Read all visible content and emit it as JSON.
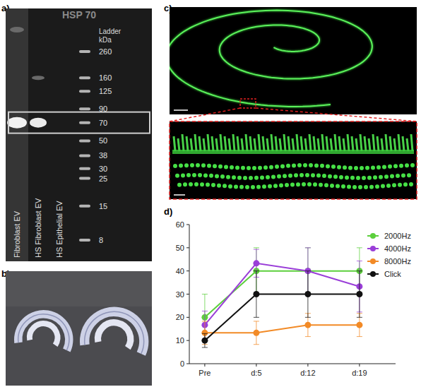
{
  "figure": {
    "panels": [
      "a)",
      "b)",
      "c)",
      "d)"
    ],
    "blot": {
      "title": "HSP 70",
      "ladder_title": "Ladder",
      "ladder_unit": "kDa",
      "ladder": [
        260,
        160,
        125,
        90,
        70,
        50,
        38,
        30,
        25,
        15,
        8
      ],
      "lanes": [
        "Fibroblast EV",
        "HS Fibroblast EV",
        "HS Epithelial EV"
      ]
    }
  },
  "chart_data": {
    "type": "line",
    "categories": [
      "Pre",
      "d:5",
      "d:12",
      "d:19"
    ],
    "ylim": [
      0,
      60
    ],
    "yticks": [
      0,
      10,
      20,
      30,
      40,
      50,
      60
    ],
    "legend": "upper right",
    "marker": "circle",
    "series": [
      {
        "name": "2000Hz",
        "color": "#5ccf3c",
        "values": [
          20,
          40,
          40,
          40
        ],
        "errors": [
          10,
          10,
          10,
          10
        ]
      },
      {
        "name": "4000Hz",
        "color": "#9a3ed8",
        "values": [
          16.7,
          43.3,
          40,
          33.3
        ],
        "errors": [
          6,
          6,
          10,
          11
        ]
      },
      {
        "name": "8000Hz",
        "color": "#f28a26",
        "values": [
          13.3,
          13.3,
          16.7,
          16.7
        ],
        "errors": [
          5,
          5,
          5,
          5
        ]
      },
      {
        "name": "Click",
        "color": "#111111",
        "values": [
          10,
          30,
          30,
          30
        ],
        "errors": [
          3,
          10,
          10,
          10
        ]
      }
    ]
  }
}
